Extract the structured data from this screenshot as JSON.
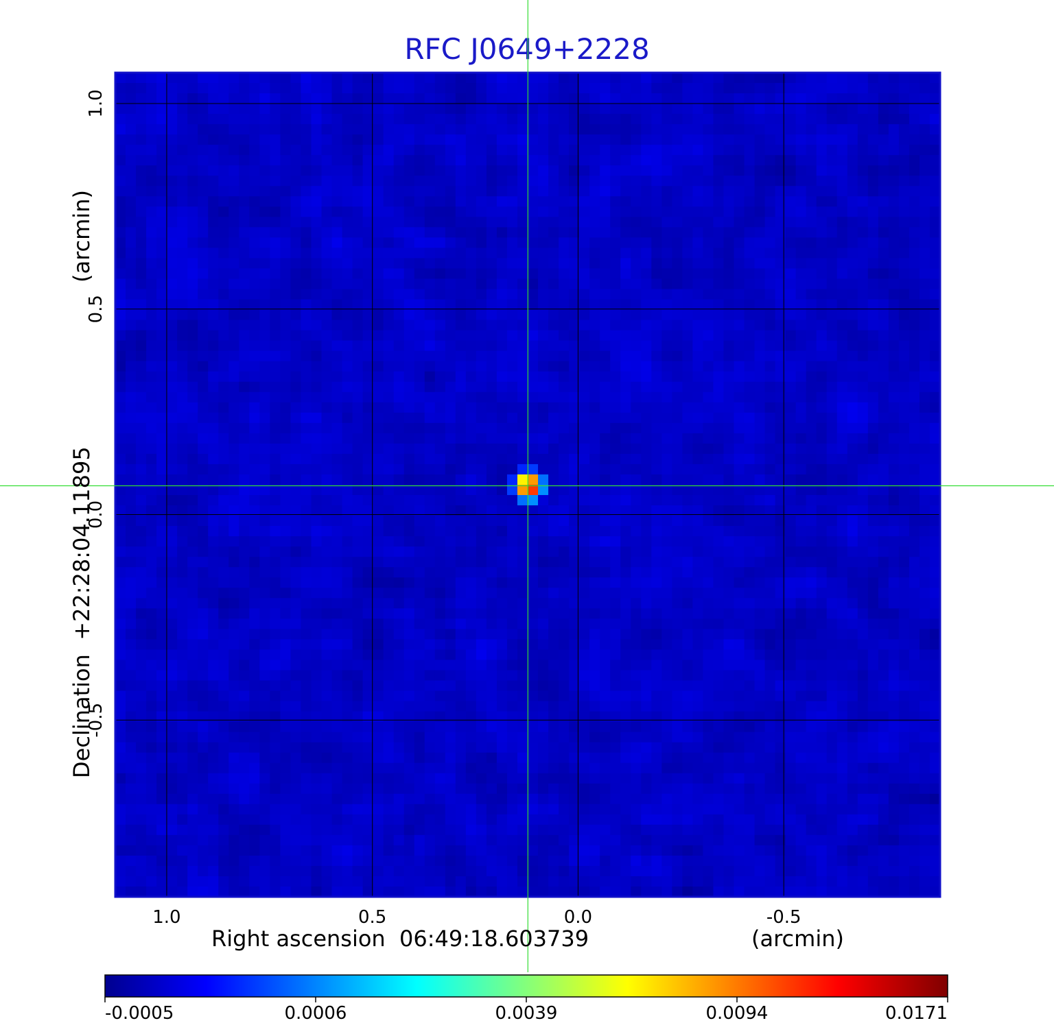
{
  "colors": {
    "title": "#1a1ac8",
    "frame": "#1010c8",
    "crosshair": "#33dd33",
    "grid": "#000000"
  },
  "chart_data": {
    "type": "heatmap",
    "title": "RFC J0649+2228",
    "xlabel_left": "Right ascension  06:49:18.603739",
    "xlabel_right": "(arcmin)",
    "ylabel_left": "Declination  +22:28:04.11895",
    "ylabel_right": "(arcmin)",
    "x_ticks": [
      {
        "value": 1.0,
        "label": "1.0"
      },
      {
        "value": 0.5,
        "label": "0.5"
      },
      {
        "value": 0.0,
        "label": "0.0"
      },
      {
        "value": -0.5,
        "label": "-0.5"
      }
    ],
    "y_ticks": [
      {
        "value": 1.0,
        "label": "1.0"
      },
      {
        "value": 0.5,
        "label": "0.5"
      },
      {
        "value": 0.0,
        "label": "0.0"
      },
      {
        "value": -0.5,
        "label": "-0.5"
      }
    ],
    "xlim": [
      1.125,
      -0.88
    ],
    "ylim": [
      -0.93,
      1.075
    ],
    "grid": true,
    "crosshair": {
      "x": 0.122,
      "y": 0.07
    },
    "peak": {
      "x": 0.12,
      "y": 0.07,
      "value": 0.0171
    },
    "noise_level": -0.0002,
    "colorscale": "jet",
    "colorbar": {
      "ticks": [
        "-0.0005",
        "0.0006",
        "0.0039",
        "0.0094",
        "0.0171"
      ],
      "range": [
        -0.0005,
        0.0171
      ]
    }
  }
}
